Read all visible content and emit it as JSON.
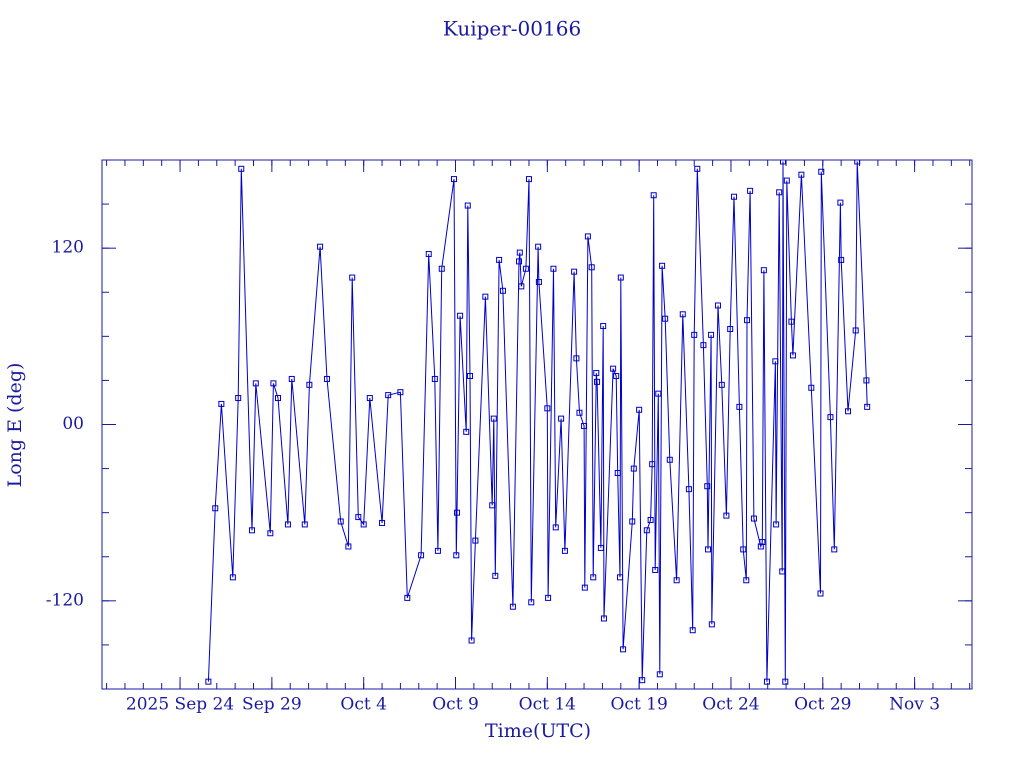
{
  "chart_data": {
    "type": "line",
    "title": "Kuiper-00166",
    "x_label": "Time(UTC)",
    "y_label": "Long E (deg)",
    "color": "#0000c8",
    "marker": "square",
    "xlim": [
      "2025-09-19 18:00",
      "2025-11-06 03:00"
    ],
    "xticks": [
      {
        "value": "2025-09-24",
        "label": "2025 Sep 24"
      },
      {
        "value": "2025-09-29",
        "label": "Sep 29"
      },
      {
        "value": "2025-10-04",
        "label": "Oct 4"
      },
      {
        "value": "2025-10-09",
        "label": "Oct 9"
      },
      {
        "value": "2025-10-14",
        "label": "Oct 14"
      },
      {
        "value": "2025-10-19",
        "label": "Oct 19"
      },
      {
        "value": "2025-10-24",
        "label": "Oct 24"
      },
      {
        "value": "2025-10-29",
        "label": "Oct 29"
      },
      {
        "value": "2025-11-03",
        "label": "Nov 3"
      }
    ],
    "ylim": [
      -180,
      180
    ],
    "yticks": [
      -120,
      {
        "value": 0,
        "label": "00"
      },
      120
    ],
    "x": [
      "2025-09-25 13:00",
      "2025-09-25 22:00",
      "2025-09-26 06:00",
      "2025-09-26 21:00",
      "2025-09-27 04:00",
      "2025-09-27 08:00",
      "2025-09-27 22:00",
      "2025-09-28 03:00",
      "2025-09-28 22:00",
      "2025-09-29 02:00",
      "2025-09-29 08:00",
      "2025-09-29 21:00",
      "2025-09-30 02:00",
      "2025-09-30 19:00",
      "2025-10-01 01:00",
      "2025-10-01 15:00",
      "2025-10-02 00:00",
      "2025-10-02 18:00",
      "2025-10-03 04:00",
      "2025-10-03 09:00",
      "2025-10-03 17:00",
      "2025-10-04 00:00",
      "2025-10-04 08:00",
      "2025-10-05 00:00",
      "2025-10-05 08:00",
      "2025-10-06 00:00",
      "2025-10-06 09:00",
      "2025-10-07 03:00",
      "2025-10-07 13:00",
      "2025-10-07 21:00",
      "2025-10-08 01:00",
      "2025-10-08 06:00",
      "2025-10-08 22:00",
      "2025-10-09 01:00",
      "2025-10-09 02:00",
      "2025-10-09 06:00",
      "2025-10-09 14:00",
      "2025-10-09 16:00",
      "2025-10-09 19:00",
      "2025-10-09 21:00",
      "2025-10-10 02:00",
      "2025-10-10 15:00",
      "2025-10-11 00:00",
      "2025-10-11 02:00",
      "2025-10-11 04:00",
      "2025-10-11 09:00",
      "2025-10-11 14:00",
      "2025-10-12 03:00",
      "2025-10-12 11:00",
      "2025-10-12 12:00",
      "2025-10-12 14:00",
      "2025-10-12 20:00",
      "2025-10-13 00:00",
      "2025-10-13 03:00",
      "2025-10-13 12:00",
      "2025-10-13 13:00",
      "2025-10-14 00:00",
      "2025-10-14 01:00",
      "2025-10-14 08:00",
      "2025-10-14 11:00",
      "2025-10-14 18:00",
      "2025-10-14 23:00",
      "2025-10-15 11:00",
      "2025-10-15 14:00",
      "2025-10-15 18:00",
      "2025-10-16 00:00",
      "2025-10-16 01:00",
      "2025-10-16 05:00",
      "2025-10-16 10:00",
      "2025-10-16 12:00",
      "2025-10-16 16:00",
      "2025-10-16 17:00",
      "2025-10-16 22:00",
      "2025-10-17 01:00",
      "2025-10-17 02:00",
      "2025-10-17 14:00",
      "2025-10-17 18:00",
      "2025-10-17 20:00",
      "2025-10-17 23:00",
      "2025-10-18 00:00",
      "2025-10-18 03:00",
      "2025-10-18 15:00",
      "2025-10-18 17:00",
      "2025-10-19 00:00",
      "2025-10-19 04:00",
      "2025-10-19 10:00",
      "2025-10-19 15:00",
      "2025-10-19 17:00",
      "2025-10-19 19:00",
      "2025-10-19 21:00",
      "2025-10-20 01:00",
      "2025-10-20 03:00",
      "2025-10-20 06:00",
      "2025-10-20 10:00",
      "2025-10-20 16:00",
      "2025-10-21 01:00",
      "2025-10-21 09:00",
      "2025-10-21 17:00",
      "2025-10-21 22:00",
      "2025-10-22 00:00",
      "2025-10-22 04:00",
      "2025-10-22 12:00",
      "2025-10-22 17:00",
      "2025-10-22 18:00",
      "2025-10-22 22:00",
      "2025-10-22 23:00",
      "2025-10-23 07:00",
      "2025-10-23 12:00",
      "2025-10-23 18:00",
      "2025-10-23 23:00",
      "2025-10-24 04:00",
      "2025-10-24 11:00",
      "2025-10-24 16:00",
      "2025-10-24 20:00",
      "2025-10-24 21:00",
      "2025-10-25 01:00",
      "2025-10-25 06:00",
      "2025-10-25 15:00",
      "2025-10-25 17:00",
      "2025-10-25 19:00",
      "2025-10-25 23:00",
      "2025-10-26 10:00",
      "2025-10-26 11:00",
      "2025-10-26 15:00",
      "2025-10-26 19:00",
      "2025-10-26 20:00",
      "2025-10-26 23:00",
      "2025-10-27 01:00",
      "2025-10-27 07:00",
      "2025-10-27 09:00",
      "2025-10-27 20:00",
      "2025-10-28 09:00",
      "2025-10-28 21:00",
      "2025-10-28 22:00",
      "2025-10-29 10:00",
      "2025-10-29 15:00",
      "2025-10-29 23:00",
      "2025-10-30 00:00",
      "2025-10-30 09:00",
      "2025-10-30 19:00",
      "2025-10-30 21:00",
      "2025-10-31 09:00",
      "2025-10-31 10:00"
    ],
    "values": [
      -175,
      -57,
      14,
      -104,
      18,
      174,
      -72,
      28,
      -74,
      28,
      18,
      -68,
      31,
      -68,
      27,
      121,
      31,
      -66,
      -83,
      100,
      -63,
      -68,
      18,
      -67,
      20,
      22,
      -118,
      -89,
      116,
      31,
      -86,
      106,
      167,
      -89,
      -60,
      74,
      -5,
      149,
      33,
      -147,
      -79,
      87,
      -55,
      4,
      -103,
      112,
      91,
      -124,
      111,
      117,
      94,
      106,
      167,
      -121,
      121,
      97,
      11,
      -118,
      106,
      -70,
      4,
      -86,
      104,
      45,
      8,
      -1,
      -111,
      128,
      107,
      -104,
      35,
      29,
      -84,
      67,
      -132,
      38,
      33,
      -33,
      -104,
      100,
      -153,
      -66,
      -30,
      10,
      -174,
      -72,
      -65,
      -27,
      156,
      -99,
      21,
      -170,
      108,
      72,
      -24,
      -106,
      75,
      -44,
      -140,
      61,
      174,
      54,
      -42,
      -85,
      61,
      -136,
      81,
      27,
      -62,
      65,
      155,
      12,
      -85,
      -106,
      71,
      159,
      -64,
      -83,
      -80,
      105,
      -175,
      43,
      -68,
      158,
      -100,
      179,
      -175,
      166,
      70,
      47,
      170,
      25,
      -115,
      172,
      5,
      -85,
      151,
      112,
      9,
      64,
      179,
      30,
      12
    ]
  }
}
